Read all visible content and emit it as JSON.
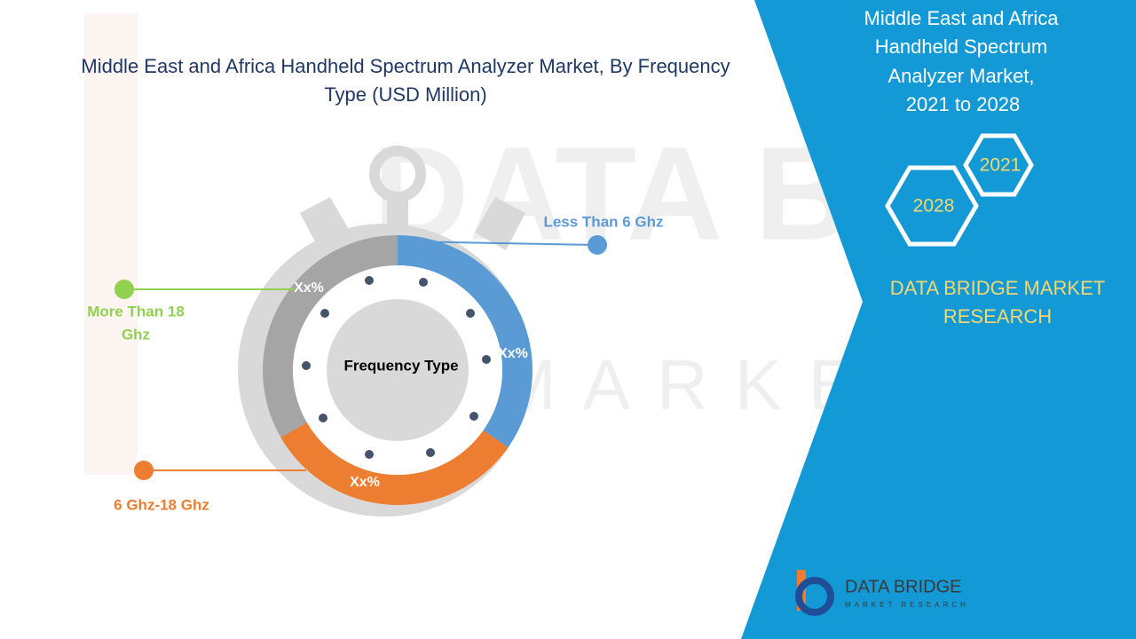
{
  "header": {
    "title_lines": [
      "Middle East and Africa Handheld Spectrum Analyzer Market, By Frequency",
      "Type  (USD Million)"
    ]
  },
  "watermark": {
    "brand": "DATA BRIDGE",
    "tagline": "MARKET RESEARCH"
  },
  "center_label": "Frequency Type",
  "segments": [
    {
      "label": "Less Than 6 Ghz",
      "percent_label": "Xx%"
    },
    {
      "label_lines": [
        "More Than 18",
        "Ghz"
      ],
      "percent_label": "Xx%"
    },
    {
      "label": "6 Ghz-18 Ghz",
      "percent_label": "Xx%"
    }
  ],
  "panel": {
    "title_lines": [
      "Middle East and Africa",
      "Handheld Spectrum",
      "Analyzer Market,",
      "2021 to 2028"
    ],
    "years": [
      "2021",
      "2028"
    ],
    "brand_lines": [
      "DATA BRIDGE MARKET",
      "RESEARCH"
    ]
  },
  "logo": {
    "name": "DATA BRIDGE",
    "tagline": "MARKET RESEARCH"
  }
}
